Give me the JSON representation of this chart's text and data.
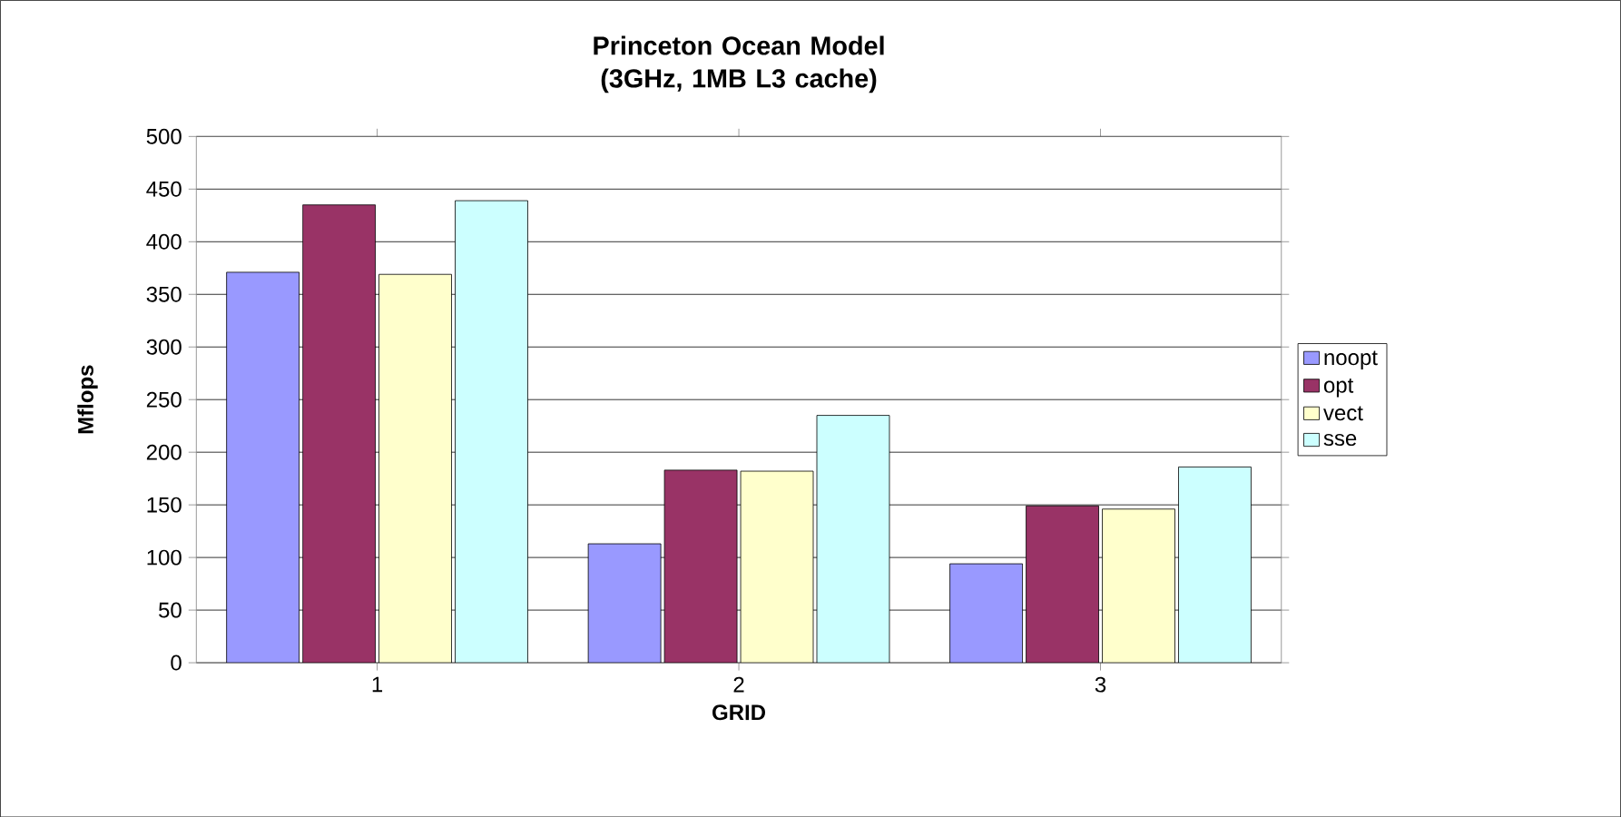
{
  "chart_data": {
    "type": "bar",
    "title": "Princeton Ocean Model (3GHz, 1MB L3 cache)",
    "xlabel": "GRID",
    "ylabel": "Mflops",
    "categories": [
      "1",
      "2",
      "3"
    ],
    "series": [
      {
        "name": "noopt",
        "color": "#9999ff",
        "values": [
          371,
          113,
          94
        ]
      },
      {
        "name": "opt",
        "color": "#993366",
        "values": [
          435,
          183,
          149
        ]
      },
      {
        "name": "vect",
        "color": "#ffffcc",
        "values": [
          369,
          182,
          146
        ]
      },
      {
        "name": "sse",
        "color": "#ccffff",
        "values": [
          439,
          235,
          186
        ]
      }
    ],
    "ylim": [
      0,
      500
    ],
    "yticks": [
      0,
      50,
      100,
      150,
      200,
      250,
      300,
      350,
      400,
      450,
      500
    ],
    "grid": "y",
    "legend": "right"
  }
}
